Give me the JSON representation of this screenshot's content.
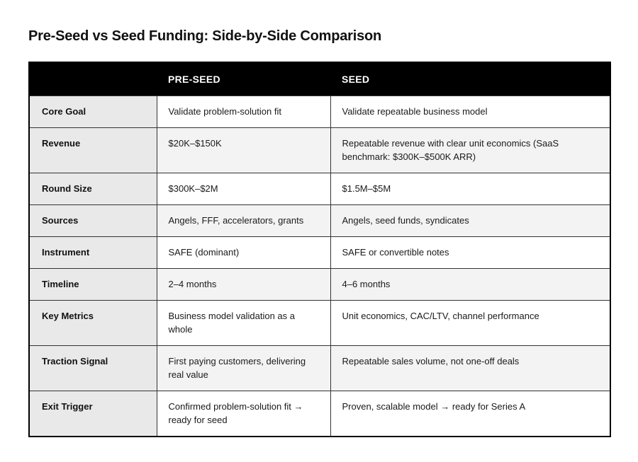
{
  "title": "Pre-Seed vs Seed Funding: Side-by-Side Comparison",
  "table": {
    "headers": [
      "",
      "PRE-SEED",
      "SEED"
    ],
    "rows": [
      {
        "label": "Core Goal",
        "pre_seed": "Validate problem-solution fit",
        "seed": "Validate repeatable business model"
      },
      {
        "label": "Revenue",
        "pre_seed": "$20K–$150K",
        "seed": "Repeatable revenue with clear unit economics (SaaS benchmark: $300K–$500K ARR)"
      },
      {
        "label": "Round Size",
        "pre_seed": "$300K–$2M",
        "seed": "$1.5M–$5M"
      },
      {
        "label": "Sources",
        "pre_seed": "Angels, FFF, accelerators, grants",
        "seed": "Angels, seed funds, syndicates"
      },
      {
        "label": "Instrument",
        "pre_seed": "SAFE (dominant)",
        "seed": "SAFE or convertible notes"
      },
      {
        "label": "Timeline",
        "pre_seed": "2–4 months",
        "seed": "4–6 months"
      },
      {
        "label": "Key Metrics",
        "pre_seed": "Business model validation as a whole",
        "seed": "Unit economics, CAC/LTV, channel performance"
      },
      {
        "label": "Traction Signal",
        "pre_seed": "First paying customers, delivering real value",
        "seed": "Repeatable sales volume, not one-off deals"
      },
      {
        "label": "Exit Trigger",
        "pre_seed": "Confirmed problem-solution fit → ready for seed",
        "seed": "Proven, scalable model → ready for Series A"
      }
    ]
  }
}
